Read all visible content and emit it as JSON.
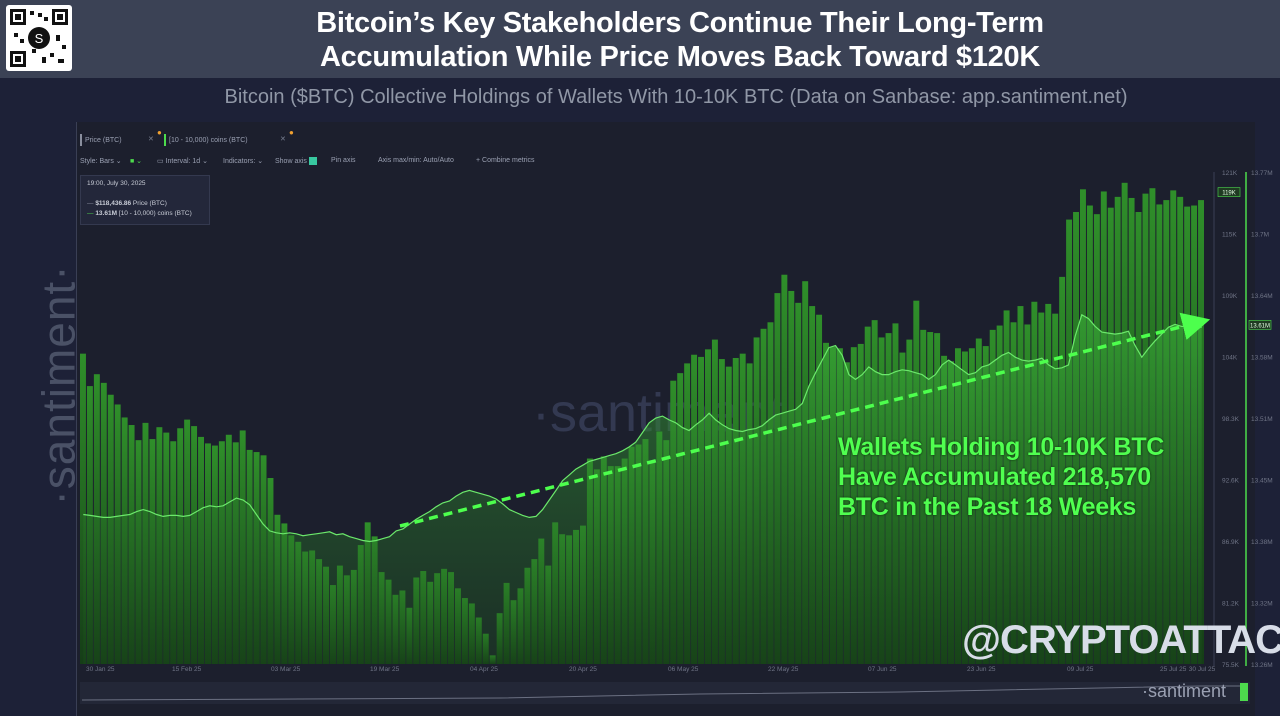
{
  "header": {
    "title_line1": "Bitcoin’s Key Stakeholders Continue Their Long-Term",
    "title_line2": "Accumulation While Price Moves Back Toward $120K",
    "subtitle": "Bitcoin ($BTC) Collective Holdings of Wallets With 10-10K BTC (Data on Sanbase: app.santiment.net)"
  },
  "side_brand": "·santiment·",
  "watermark": "·santiment",
  "toolbar": {
    "metric1": "Price (BTC)",
    "metric2": "[10 - 10,000) coins (BTC)",
    "style": "Style: Bars",
    "interval": "Interval: 1d",
    "indicators": "Indicators:",
    "show_axis": "Show axis",
    "pin_axis": "Pin axis",
    "axis_maxmin": "Axis max/min: Auto/Auto",
    "combine": "+ Combine metrics"
  },
  "tooltip": {
    "date": "19:00, July 30, 2025",
    "price_value": "$118,436.86",
    "price_label": "Price (BTC)",
    "holdings_value": "13.61M",
    "holdings_label": "[10 - 10,000) coins (BTC)"
  },
  "annotation": {
    "line1": "Wallets Holding 10-10K BTC",
    "line2": "Have Accumulated 218,570",
    "line3": "BTC in the Past 18 Weeks"
  },
  "handle": "@CRYPTOATTACK",
  "logo_bottom_right": "·santiment",
  "colors": {
    "bar": "#2e8a2a",
    "area": "#3fae3a",
    "line": "#6be86b",
    "arrow": "#4dff4d",
    "bg": "#1c1f2d"
  },
  "chart_data": {
    "type": "bar",
    "title": "Bitcoin’s Key Stakeholders Continue Their Long-Term Accumulation While Price Moves Back Toward $120K",
    "x_ticks": [
      "30 Jan 25",
      "15 Feb 25",
      "03 Mar 25",
      "19 Mar 25",
      "04 Apr 25",
      "20 Apr 25",
      "06 May 25",
      "22 May 25",
      "07 Jun 25",
      "23 Jun 25",
      "09 Jul 25",
      "25 Jul 25",
      "30 Jul 25"
    ],
    "y_price_ticks": [
      "121K",
      "115K",
      "109K",
      "104K",
      "98.3K",
      "92.6K",
      "86.9K",
      "81.2K",
      "75.5K"
    ],
    "y_price_badge": "119K",
    "y_price_range": [
      75500,
      121000
    ],
    "y_holdings_ticks": [
      "13.77M",
      "13.7M",
      "13.64M",
      "13.58M",
      "13.51M",
      "13.45M",
      "13.38M",
      "13.32M",
      "13.26M"
    ],
    "y_holdings_badge": "13.61M",
    "y_holdings_range": [
      13.26,
      13.77
    ],
    "date_range": [
      "2025-01-30",
      "2025-07-30"
    ],
    "series": [
      {
        "name": "Price (BTC)",
        "render": "bars",
        "values": [
          104200,
          101200,
          102300,
          101500,
          100400,
          99500,
          98300,
          97600,
          96200,
          97800,
          96300,
          97400,
          96900,
          96100,
          97300,
          98100,
          97500,
          96500,
          95900,
          95700,
          96100,
          96700,
          96000,
          97100,
          95300,
          95100,
          94800,
          92700,
          89300,
          88500,
          87400,
          86800,
          85900,
          86000,
          85200,
          84500,
          82800,
          84600,
          83700,
          84200,
          86500,
          88600,
          87300,
          84000,
          83300,
          81900,
          82300,
          80700,
          83500,
          84100,
          83100,
          83900,
          84300,
          84000,
          82500,
          81600,
          81100,
          79800,
          78300,
          76300,
          80200,
          83000,
          81400,
          82500,
          84400,
          85200,
          87100,
          84600,
          88600,
          87500,
          87400,
          87900,
          88300,
          94500,
          93500,
          94700,
          93800,
          93800,
          94500,
          95600,
          95800,
          96300,
          94100,
          97000,
          96200,
          101700,
          102400,
          103300,
          104100,
          103900,
          104600,
          105500,
          103700,
          103000,
          103800,
          104200,
          103300,
          105700,
          106500,
          107100,
          109800,
          111500,
          110000,
          108900,
          110900,
          108600,
          107800,
          105200,
          104800,
          104700,
          103400,
          104800,
          105100,
          106700,
          107300,
          105700,
          106100,
          107000,
          104300,
          105500,
          109100,
          106400,
          106200,
          106100,
          104000,
          103500,
          104700,
          104400,
          104700,
          105600,
          104900,
          106400,
          106800,
          108200,
          107100,
          108600,
          106900,
          109000,
          108000,
          108800,
          107900,
          111300,
          116600,
          117300,
          119400,
          117900,
          117100,
          119200,
          117700,
          118700,
          120000,
          118600,
          117300,
          119000,
          119500,
          118000,
          118400,
          119300,
          118700,
          117800,
          117900,
          118400
        ]
      },
      {
        "name": "[10 - 10,000) coins (BTC)",
        "render": "area",
        "values": [
          13.415,
          13.414,
          13.413,
          13.412,
          13.412,
          13.413,
          13.414,
          13.415,
          13.418,
          13.42,
          13.418,
          13.415,
          13.413,
          13.414,
          13.414,
          13.413,
          13.414,
          13.418,
          13.422,
          13.424,
          13.423,
          13.424,
          13.428,
          13.432,
          13.43,
          13.425,
          13.415,
          13.405,
          13.398,
          13.396,
          13.395,
          13.396,
          13.395,
          13.393,
          13.394,
          13.395,
          13.396,
          13.397,
          13.394,
          13.395,
          13.392,
          13.39,
          13.388,
          13.387,
          13.388,
          13.39,
          13.392,
          13.398,
          13.4,
          13.405,
          13.41,
          13.414,
          13.418,
          13.423,
          13.427,
          13.429,
          13.434,
          13.438,
          13.44,
          13.438,
          13.436,
          13.434,
          13.431,
          13.426,
          13.42,
          13.417,
          13.414,
          13.412,
          13.413,
          13.42,
          13.43,
          13.44,
          13.45,
          13.456,
          13.462,
          13.466,
          13.47,
          13.472,
          13.474,
          13.476,
          13.478,
          13.481,
          13.485,
          13.49,
          13.5,
          13.51,
          13.515,
          13.517,
          13.513,
          13.51,
          13.505,
          13.502,
          13.508,
          13.513,
          13.52,
          13.513,
          13.508,
          13.504,
          13.502,
          13.501,
          13.503,
          13.504,
          13.507,
          13.513,
          13.518,
          13.52,
          13.522,
          13.524,
          13.53,
          13.548,
          13.562,
          13.575,
          13.588,
          13.59,
          13.58,
          13.56,
          13.555,
          13.56,
          13.568,
          13.563,
          13.56,
          13.56,
          13.563,
          13.565,
          13.564,
          13.562,
          13.56,
          13.555,
          13.56,
          13.57,
          13.575,
          13.57,
          13.565,
          13.56,
          13.562,
          13.568,
          13.57,
          13.575,
          13.58,
          13.583,
          13.578,
          13.575,
          13.574,
          13.575,
          13.577,
          13.57,
          13.566,
          13.567,
          13.57,
          13.6,
          13.622,
          13.618,
          13.61,
          13.604,
          13.603,
          13.602,
          13.603,
          13.605,
          13.59,
          13.578,
          13.587,
          13.595,
          13.602,
          13.609,
          13.612,
          13.61,
          13.61,
          13.61,
          13.609
        ]
      }
    ],
    "annotation": "Wallets Holding 10-10K BTC Have Accumulated 218,570 BTC in the Past 18 Weeks",
    "legend": "top-left",
    "grid": false
  }
}
